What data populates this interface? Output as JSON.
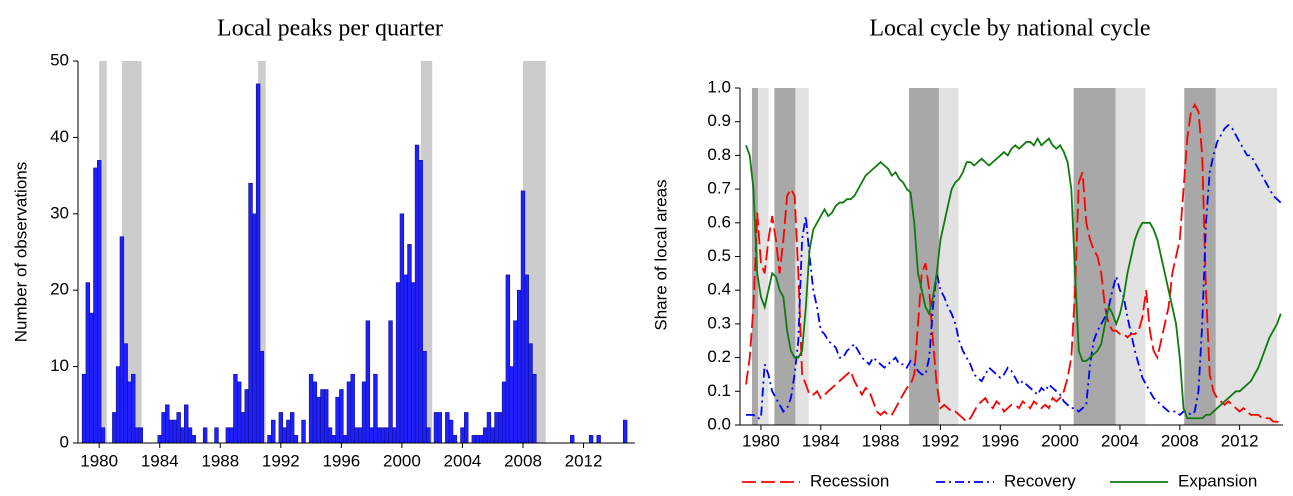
{
  "chart_data": [
    {
      "type": "bar",
      "title": "Local peaks per quarter",
      "y_label": "Number of observations",
      "x": [
        1979.0,
        1979.25,
        1979.5,
        1979.75,
        1980.0,
        1980.25,
        1981.0,
        1981.25,
        1981.5,
        1981.75,
        1982.0,
        1982.25,
        1982.5,
        1982.75,
        1984.0,
        1984.25,
        1984.5,
        1984.75,
        1985.0,
        1985.25,
        1985.5,
        1985.75,
        1986.0,
        1986.25,
        1987.0,
        1987.75,
        1988.5,
        1988.75,
        1989.0,
        1989.25,
        1989.5,
        1989.75,
        1990.0,
        1990.25,
        1990.5,
        1990.75,
        1991.25,
        1991.5,
        1992.0,
        1992.25,
        1992.5,
        1992.75,
        1993.0,
        1993.5,
        1994.0,
        1994.25,
        1994.5,
        1994.75,
        1995.0,
        1995.25,
        1995.5,
        1995.75,
        1996.0,
        1996.25,
        1996.5,
        1996.75,
        1997.0,
        1997.25,
        1997.5,
        1997.75,
        1998.0,
        1998.25,
        1998.5,
        1998.75,
        1999.0,
        1999.25,
        1999.5,
        1999.75,
        2000.0,
        2000.25,
        2000.5,
        2000.75,
        2001.0,
        2001.25,
        2001.5,
        2001.75,
        2002.25,
        2002.5,
        2003.0,
        2003.25,
        2003.5,
        2004.0,
        2004.25,
        2004.75,
        2005.0,
        2005.25,
        2005.5,
        2005.75,
        2006.0,
        2006.25,
        2006.5,
        2006.75,
        2007.0,
        2007.25,
        2007.5,
        2007.75,
        2008.0,
        2008.25,
        2008.5,
        2008.75,
        2011.25,
        2012.5,
        2013.0,
        2014.75
      ],
      "values": [
        9,
        21,
        17,
        36,
        37,
        2,
        4,
        10,
        27,
        13,
        8,
        9,
        2,
        2,
        1,
        4,
        5,
        3,
        3,
        4,
        2,
        5,
        2,
        1,
        2,
        2,
        2,
        2,
        9,
        8,
        4,
        7,
        34,
        30,
        47,
        12,
        1,
        3,
        4,
        2,
        3,
        4,
        1,
        3,
        9,
        8,
        6,
        7,
        7,
        2,
        1,
        6,
        7,
        1,
        8,
        9,
        2,
        2,
        8,
        16,
        2,
        9,
        2,
        2,
        2,
        16,
        2,
        21,
        30,
        22,
        26,
        21,
        39,
        37,
        12,
        2,
        4,
        4,
        4,
        3,
        1,
        2,
        4,
        1,
        1,
        1,
        2,
        4,
        2,
        4,
        4,
        8,
        22,
        10,
        16,
        20,
        33,
        22,
        13,
        9,
        1,
        1,
        1,
        3
      ],
      "color": "#2020ff",
      "edge_color": "#10108a",
      "bands": [
        [
          1980.0,
          1980.5
        ],
        [
          1981.5,
          1982.8
        ],
        [
          1990.5,
          1991.0
        ],
        [
          2001.25,
          2002.0
        ],
        [
          2008.0,
          2009.5
        ]
      ],
      "band_color": "#cccccc",
      "xlim": [
        1978.6,
        2015.4
      ],
      "xticks": [
        1980,
        1984,
        1988,
        1992,
        1996,
        2000,
        2004,
        2008,
        2012
      ],
      "ylim": [
        0,
        50
      ],
      "yticks": [
        0,
        10,
        20,
        30,
        40,
        50
      ]
    },
    {
      "type": "line",
      "title": "Local cycle by national cycle",
      "y_label": "Share of local areas",
      "x": [
        1979.0,
        1979.25,
        1979.5,
        1979.75,
        1980.0,
        1980.25,
        1980.5,
        1980.75,
        1981.0,
        1981.25,
        1981.5,
        1981.75,
        1982.0,
        1982.25,
        1982.5,
        1982.75,
        1983.0,
        1983.25,
        1983.5,
        1983.75,
        1984.0,
        1984.25,
        1984.5,
        1984.75,
        1985.0,
        1985.25,
        1985.5,
        1985.75,
        1986.0,
        1986.25,
        1986.5,
        1986.75,
        1987.0,
        1987.25,
        1987.5,
        1987.75,
        1988.0,
        1988.25,
        1988.5,
        1988.75,
        1989.0,
        1989.25,
        1989.5,
        1989.75,
        1990.0,
        1990.25,
        1990.5,
        1990.75,
        1991.0,
        1991.25,
        1991.5,
        1991.75,
        1992.0,
        1992.25,
        1992.5,
        1992.75,
        1993.0,
        1993.25,
        1993.5,
        1993.75,
        1994.0,
        1994.25,
        1994.5,
        1994.75,
        1995.0,
        1995.25,
        1995.5,
        1995.75,
        1996.0,
        1996.25,
        1996.5,
        1996.75,
        1997.0,
        1997.25,
        1997.5,
        1997.75,
        1998.0,
        1998.25,
        1998.5,
        1998.75,
        1999.0,
        1999.25,
        1999.5,
        1999.75,
        2000.0,
        2000.25,
        2000.5,
        2000.75,
        2001.0,
        2001.25,
        2001.5,
        2001.75,
        2002.0,
        2002.25,
        2002.5,
        2002.75,
        2003.0,
        2003.25,
        2003.5,
        2003.75,
        2004.0,
        2004.25,
        2004.5,
        2004.75,
        2005.0,
        2005.25,
        2005.5,
        2005.75,
        2006.0,
        2006.25,
        2006.5,
        2006.75,
        2007.0,
        2007.25,
        2007.5,
        2007.75,
        2008.0,
        2008.25,
        2008.5,
        2008.75,
        2009.0,
        2009.25,
        2009.5,
        2009.75,
        2010.0,
        2010.25,
        2010.5,
        2010.75,
        2011.0,
        2011.25,
        2011.5,
        2011.75,
        2012.0,
        2012.25,
        2012.5,
        2012.75,
        2013.0,
        2013.25,
        2013.5,
        2013.75,
        2014.0,
        2014.25,
        2014.5,
        2014.75
      ],
      "series": [
        {
          "name": "Recession",
          "color": "#ff0000",
          "dash": "dashed",
          "values": [
            0.12,
            0.2,
            0.35,
            0.63,
            0.48,
            0.45,
            0.55,
            0.62,
            0.55,
            0.45,
            0.55,
            0.68,
            0.7,
            0.68,
            0.45,
            0.15,
            0.12,
            0.09,
            0.09,
            0.1,
            0.08,
            0.09,
            0.1,
            0.11,
            0.12,
            0.13,
            0.14,
            0.15,
            0.16,
            0.13,
            0.11,
            0.09,
            0.11,
            0.1,
            0.07,
            0.04,
            0.03,
            0.04,
            0.03,
            0.03,
            0.05,
            0.07,
            0.09,
            0.11,
            0.12,
            0.15,
            0.3,
            0.45,
            0.48,
            0.4,
            0.25,
            0.12,
            0.05,
            0.06,
            0.05,
            0.04,
            0.04,
            0.03,
            0.02,
            0.01,
            0.02,
            0.04,
            0.06,
            0.07,
            0.08,
            0.06,
            0.05,
            0.07,
            0.06,
            0.04,
            0.05,
            0.06,
            0.06,
            0.05,
            0.07,
            0.06,
            0.05,
            0.07,
            0.06,
            0.05,
            0.06,
            0.05,
            0.08,
            0.07,
            0.08,
            0.1,
            0.14,
            0.2,
            0.4,
            0.72,
            0.75,
            0.6,
            0.55,
            0.52,
            0.5,
            0.45,
            0.35,
            0.3,
            0.28,
            0.28,
            0.27,
            0.27,
            0.26,
            0.27,
            0.27,
            0.28,
            0.32,
            0.4,
            0.28,
            0.22,
            0.2,
            0.25,
            0.3,
            0.35,
            0.45,
            0.5,
            0.55,
            0.7,
            0.85,
            0.93,
            0.95,
            0.93,
            0.8,
            0.4,
            0.15,
            0.1,
            0.08,
            0.07,
            0.06,
            0.07,
            0.06,
            0.05,
            0.04,
            0.05,
            0.04,
            0.03,
            0.03,
            0.03,
            0.02,
            0.02,
            0.02,
            0.01,
            0.01,
            0.005
          ]
        },
        {
          "name": "Recovery",
          "color": "#0000ff",
          "dash": "dashdot",
          "values": [
            0.03,
            0.03,
            0.03,
            0.02,
            0.02,
            0.18,
            0.15,
            0.1,
            0.08,
            0.06,
            0.04,
            0.05,
            0.08,
            0.15,
            0.25,
            0.55,
            0.62,
            0.5,
            0.4,
            0.35,
            0.28,
            0.27,
            0.25,
            0.24,
            0.23,
            0.2,
            0.2,
            0.22,
            0.23,
            0.24,
            0.22,
            0.2,
            0.19,
            0.18,
            0.2,
            0.19,
            0.18,
            0.17,
            0.18,
            0.19,
            0.2,
            0.18,
            0.18,
            0.17,
            0.19,
            0.18,
            0.16,
            0.15,
            0.15,
            0.2,
            0.35,
            0.45,
            0.4,
            0.38,
            0.35,
            0.33,
            0.3,
            0.25,
            0.22,
            0.2,
            0.18,
            0.15,
            0.14,
            0.13,
            0.15,
            0.17,
            0.16,
            0.15,
            0.14,
            0.15,
            0.17,
            0.16,
            0.14,
            0.12,
            0.13,
            0.12,
            0.11,
            0.1,
            0.09,
            0.11,
            0.1,
            0.12,
            0.11,
            0.1,
            0.09,
            0.07,
            0.06,
            0.05,
            0.05,
            0.04,
            0.05,
            0.06,
            0.18,
            0.25,
            0.28,
            0.3,
            0.32,
            0.35,
            0.4,
            0.44,
            0.4,
            0.38,
            0.32,
            0.27,
            0.22,
            0.18,
            0.14,
            0.12,
            0.1,
            0.08,
            0.07,
            0.06,
            0.05,
            0.04,
            0.04,
            0.04,
            0.03,
            0.04,
            0.04,
            0.03,
            0.04,
            0.1,
            0.3,
            0.6,
            0.75,
            0.8,
            0.84,
            0.86,
            0.88,
            0.89,
            0.88,
            0.86,
            0.84,
            0.82,
            0.8,
            0.8,
            0.78,
            0.76,
            0.74,
            0.72,
            0.7,
            0.68,
            0.67,
            0.66
          ]
        },
        {
          "name": "Expansion",
          "color": "#107a10",
          "dash": "solid",
          "values": [
            0.83,
            0.8,
            0.7,
            0.45,
            0.38,
            0.35,
            0.4,
            0.45,
            0.44,
            0.4,
            0.38,
            0.28,
            0.22,
            0.2,
            0.2,
            0.22,
            0.35,
            0.52,
            0.58,
            0.6,
            0.62,
            0.64,
            0.62,
            0.63,
            0.65,
            0.66,
            0.66,
            0.67,
            0.67,
            0.68,
            0.7,
            0.72,
            0.74,
            0.75,
            0.76,
            0.77,
            0.78,
            0.77,
            0.76,
            0.74,
            0.75,
            0.73,
            0.72,
            0.7,
            0.69,
            0.6,
            0.45,
            0.4,
            0.35,
            0.33,
            0.38,
            0.45,
            0.55,
            0.6,
            0.65,
            0.7,
            0.72,
            0.73,
            0.75,
            0.78,
            0.78,
            0.77,
            0.78,
            0.79,
            0.78,
            0.77,
            0.78,
            0.79,
            0.8,
            0.81,
            0.8,
            0.82,
            0.83,
            0.82,
            0.83,
            0.84,
            0.84,
            0.83,
            0.85,
            0.83,
            0.84,
            0.85,
            0.83,
            0.82,
            0.83,
            0.81,
            0.78,
            0.7,
            0.45,
            0.22,
            0.19,
            0.19,
            0.2,
            0.21,
            0.22,
            0.24,
            0.3,
            0.35,
            0.33,
            0.3,
            0.33,
            0.38,
            0.45,
            0.5,
            0.55,
            0.58,
            0.6,
            0.6,
            0.6,
            0.58,
            0.55,
            0.5,
            0.45,
            0.4,
            0.35,
            0.3,
            0.2,
            0.05,
            0.02,
            0.02,
            0.02,
            0.02,
            0.02,
            0.03,
            0.03,
            0.04,
            0.05,
            0.06,
            0.07,
            0.08,
            0.09,
            0.1,
            0.1,
            0.11,
            0.12,
            0.13,
            0.15,
            0.17,
            0.2,
            0.23,
            0.26,
            0.28,
            0.3,
            0.33
          ]
        }
      ],
      "dark_bands": [
        [
          1979.4,
          1979.8
        ],
        [
          1980.9,
          1982.3
        ],
        [
          1989.9,
          1991.9
        ],
        [
          2000.9,
          2003.7
        ],
        [
          2008.3,
          2010.4
        ]
      ],
      "light_bands": [
        [
          1979.8,
          1980.5
        ],
        [
          1982.3,
          1983.2
        ],
        [
          1991.9,
          1993.2
        ],
        [
          2003.7,
          2005.7
        ],
        [
          2010.4,
          2014.5
        ]
      ],
      "dark_color": "#a8a8a8",
      "light_color": "#e2e2e2",
      "legend": "below",
      "xlim": [
        1978.6,
        2014.9
      ],
      "xticks": [
        1980,
        1984,
        1988,
        1992,
        1996,
        2000,
        2004,
        2008,
        2012
      ],
      "ylim": [
        0,
        1
      ],
      "yticks": [
        {
          "value": 0,
          "label": "0.0"
        },
        0.1,
        0.2,
        0.3,
        0.4,
        0.5,
        0.6,
        0.7,
        0.8,
        0.9,
        {
          "value": 1,
          "label": "1.0"
        }
      ]
    }
  ]
}
